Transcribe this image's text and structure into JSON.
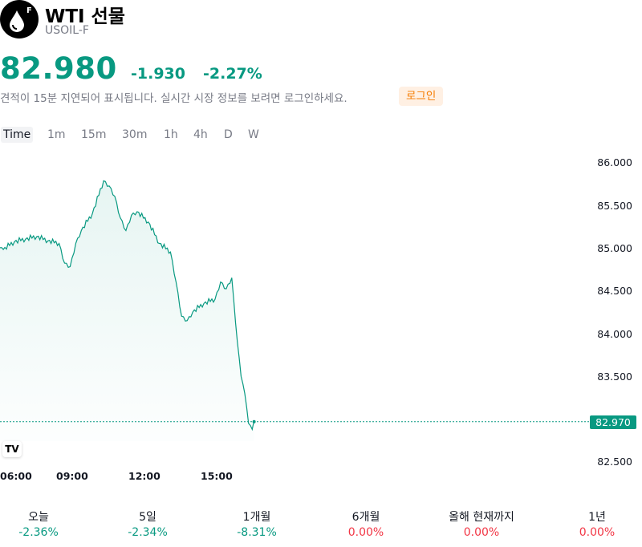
{
  "header": {
    "logo_icon": "oil-drop-icon",
    "logo_badge": "F",
    "title": "WTI 선물",
    "symbol": "USOIL-F"
  },
  "quote": {
    "price": "82.980",
    "change": "-1.930",
    "change_percent": "-2.27%",
    "color": "#089981"
  },
  "notice": {
    "text": "견적이 15분 지연되어 표시됩니다. 실시간 시장 정보를 보려면 로그인하세요.",
    "login_label": "로그인"
  },
  "intervals": [
    "Time",
    "1m",
    "15m",
    "30m",
    "1h",
    "4h",
    "D",
    "W"
  ],
  "active_interval": "Time",
  "chart_data": {
    "type": "area",
    "x_ticks": [
      "06:00",
      "09:00",
      "12:00",
      "15:00"
    ],
    "y_ticks": [
      "86.000",
      "85.500",
      "85.000",
      "84.500",
      "84.000",
      "83.500",
      "82.500"
    ],
    "ylim": [
      82.5,
      86.0
    ],
    "last_price_label": "82.970",
    "last_price": 82.97,
    "line_color": "#089981",
    "series": [
      {
        "x": [
          "05:00",
          "05:30",
          "06:00",
          "06:30",
          "07:00",
          "07:30",
          "08:00",
          "08:15",
          "08:30",
          "08:45",
          "09:00",
          "09:30",
          "10:00",
          "10:15",
          "10:30",
          "10:45",
          "11:00",
          "11:15",
          "11:30",
          "12:00",
          "12:30",
          "13:00",
          "13:15",
          "13:30",
          "13:45",
          "14:00",
          "14:30",
          "15:00",
          "15:15",
          "15:30",
          "15:45",
          "16:00",
          "16:10",
          "16:20",
          "16:30",
          "16:40",
          "16:45"
        ],
        "values": [
          85.0,
          84.98,
          85.07,
          85.1,
          85.13,
          85.08,
          85.05,
          84.82,
          84.78,
          85.05,
          85.2,
          85.4,
          85.78,
          85.72,
          85.6,
          85.35,
          85.2,
          85.38,
          85.42,
          85.3,
          85.05,
          84.95,
          84.6,
          84.2,
          84.15,
          84.25,
          84.35,
          84.4,
          84.6,
          84.52,
          84.65,
          83.9,
          83.5,
          83.3,
          82.95,
          82.88,
          82.97
        ]
      }
    ]
  },
  "performance": [
    {
      "label": "오늘",
      "value": "-2.36%",
      "state": "neg"
    },
    {
      "label": "5일",
      "value": "-2.34%",
      "state": "neg"
    },
    {
      "label": "1개월",
      "value": "-8.31%",
      "state": "neg"
    },
    {
      "label": "6개월",
      "value": "0.00%",
      "state": "zero"
    },
    {
      "label": "올해 현재까지",
      "value": "0.00%",
      "state": "zero"
    },
    {
      "label": "1년",
      "value": "0.00%",
      "state": "zero"
    }
  ]
}
